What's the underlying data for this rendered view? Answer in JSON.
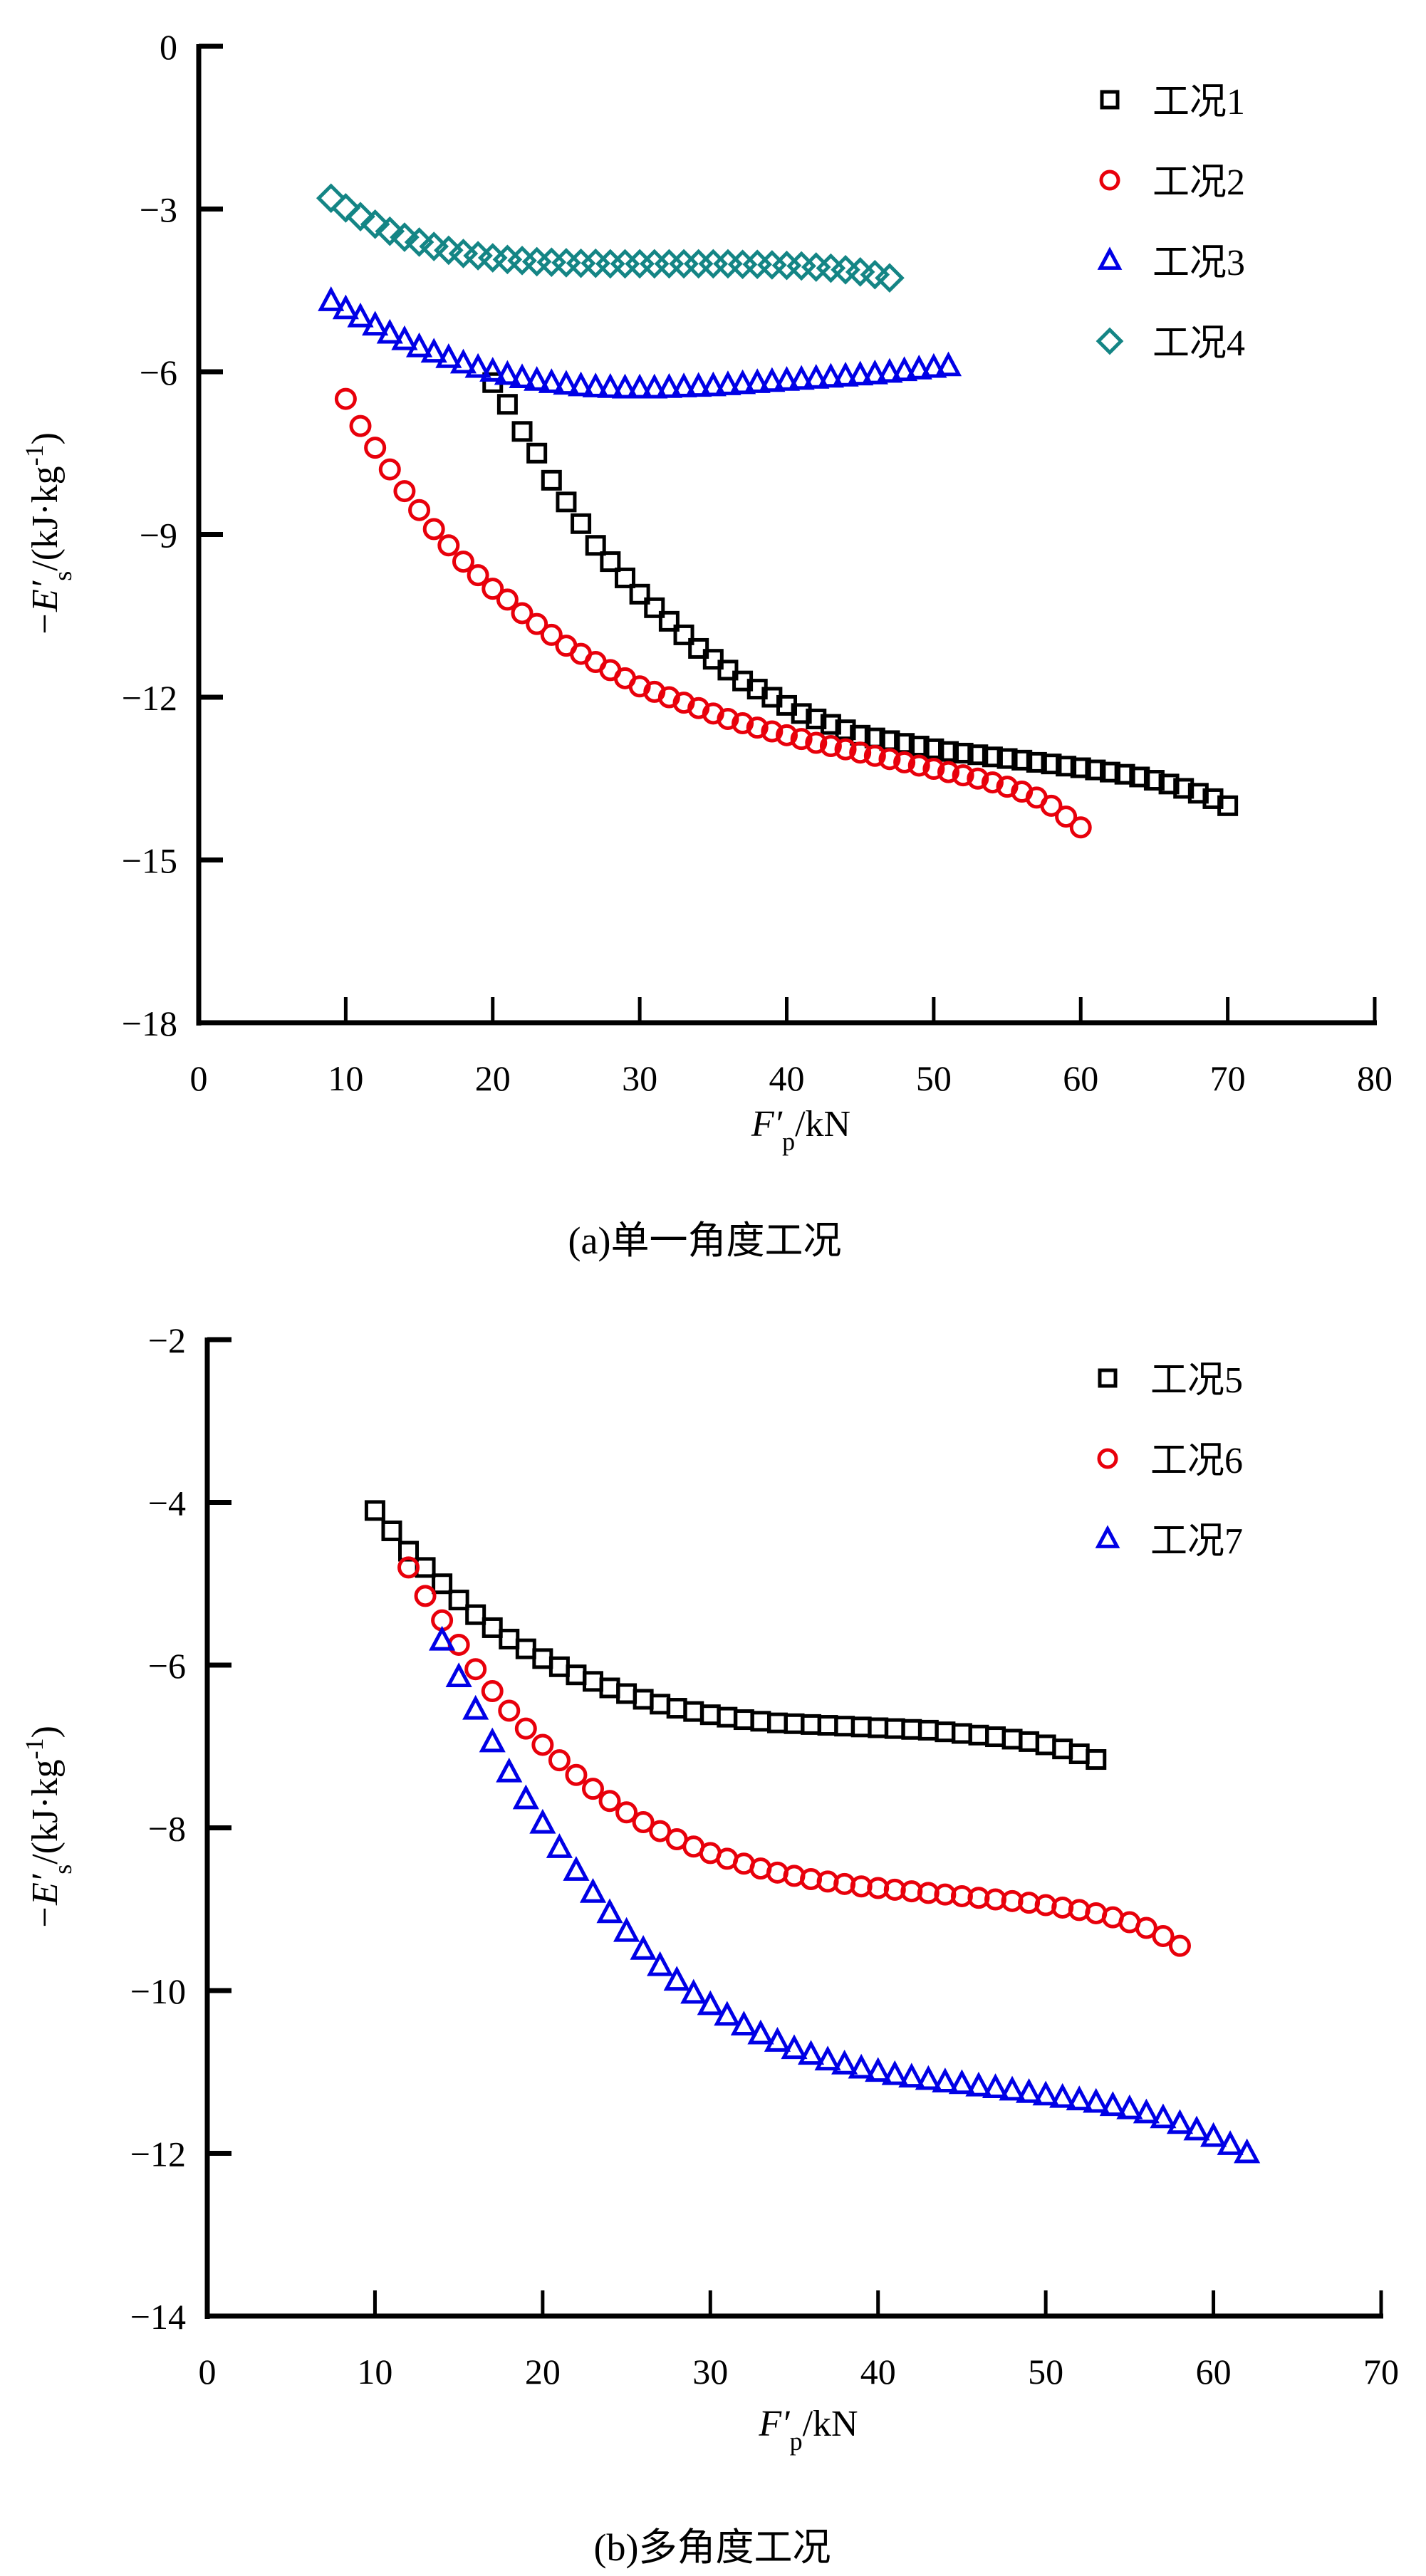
{
  "chart_data": [
    {
      "type": "scatter",
      "caption": "(a)单一角度工况",
      "xlabel_main": "F′",
      "xlabel_sub": "p",
      "xlabel_unit": "/kN",
      "ylabel_main": "−E′",
      "ylabel_sub": "s",
      "ylabel_unit": "/(kJ·kg",
      "ylabel_sup": "-1",
      "ylabel_close": ")",
      "xlim": [
        0,
        80
      ],
      "ylim": [
        -18,
        0
      ],
      "xticks": [
        0,
        10,
        20,
        30,
        40,
        50,
        60,
        70,
        80
      ],
      "yticks": [
        0,
        -3,
        -6,
        -9,
        -12,
        -15,
        -18
      ],
      "ytick_labels": [
        "0",
        "−3",
        "−6",
        "−9",
        "−12",
        "−15",
        "−18"
      ],
      "grid": false,
      "legend_position": "top-right",
      "series": [
        {
          "name": "工况1",
          "marker": "square",
          "color": "#000000",
          "x": [
            20,
            21,
            22,
            23,
            24,
            25,
            26,
            27,
            28,
            29,
            30,
            31,
            32,
            33,
            34,
            35,
            36,
            37,
            38,
            39,
            40,
            41,
            42,
            43,
            44,
            45,
            46,
            47,
            48,
            49,
            50,
            51,
            52,
            53,
            54,
            55,
            56,
            57,
            58,
            59,
            60,
            61,
            62,
            63,
            64,
            65,
            66,
            67,
            68,
            69,
            70
          ],
          "y": [
            -6.2,
            -6.6,
            -7.1,
            -7.5,
            -8.0,
            -8.4,
            -8.8,
            -9.2,
            -9.5,
            -9.8,
            -10.1,
            -10.35,
            -10.6,
            -10.85,
            -11.1,
            -11.3,
            -11.5,
            -11.7,
            -11.85,
            -12.0,
            -12.15,
            -12.3,
            -12.4,
            -12.5,
            -12.6,
            -12.7,
            -12.75,
            -12.8,
            -12.85,
            -12.9,
            -12.95,
            -13.0,
            -13.03,
            -13.06,
            -13.1,
            -13.13,
            -13.16,
            -13.2,
            -13.23,
            -13.27,
            -13.3,
            -13.34,
            -13.38,
            -13.42,
            -13.47,
            -13.53,
            -13.6,
            -13.68,
            -13.77,
            -13.87,
            -14.0
          ]
        },
        {
          "name": "工况2",
          "marker": "circle",
          "color": "#e8000b",
          "x": [
            10,
            11,
            12,
            13,
            14,
            15,
            16,
            17,
            18,
            19,
            20,
            21,
            22,
            23,
            24,
            25,
            26,
            27,
            28,
            29,
            30,
            31,
            32,
            33,
            34,
            35,
            36,
            37,
            38,
            39,
            40,
            41,
            42,
            43,
            44,
            45,
            46,
            47,
            48,
            49,
            50,
            51,
            52,
            53,
            54,
            55,
            56,
            57,
            58,
            59,
            60
          ],
          "y": [
            -6.5,
            -7.0,
            -7.4,
            -7.8,
            -8.2,
            -8.55,
            -8.9,
            -9.2,
            -9.5,
            -9.75,
            -10.0,
            -10.2,
            -10.45,
            -10.65,
            -10.85,
            -11.05,
            -11.2,
            -11.35,
            -11.5,
            -11.65,
            -11.8,
            -11.9,
            -12.0,
            -12.1,
            -12.2,
            -12.3,
            -12.4,
            -12.48,
            -12.56,
            -12.63,
            -12.7,
            -12.77,
            -12.84,
            -12.9,
            -12.96,
            -13.02,
            -13.08,
            -13.14,
            -13.2,
            -13.26,
            -13.32,
            -13.38,
            -13.44,
            -13.5,
            -13.57,
            -13.65,
            -13.74,
            -13.85,
            -14.0,
            -14.2,
            -14.4
          ]
        },
        {
          "name": "工况3",
          "marker": "triangle",
          "color": "#0000e6",
          "x": [
            9,
            10,
            11,
            12,
            13,
            14,
            15,
            16,
            17,
            18,
            19,
            20,
            21,
            22,
            23,
            24,
            25,
            26,
            27,
            28,
            29,
            30,
            31,
            32,
            33,
            34,
            35,
            36,
            37,
            38,
            39,
            40,
            41,
            42,
            43,
            44,
            45,
            46,
            47,
            48,
            49,
            50,
            51
          ],
          "y": [
            -4.7,
            -4.85,
            -5.0,
            -5.15,
            -5.3,
            -5.42,
            -5.55,
            -5.65,
            -5.75,
            -5.85,
            -5.93,
            -6.0,
            -6.06,
            -6.12,
            -6.17,
            -6.21,
            -6.24,
            -6.27,
            -6.29,
            -6.3,
            -6.31,
            -6.31,
            -6.31,
            -6.3,
            -6.29,
            -6.28,
            -6.27,
            -6.25,
            -6.23,
            -6.21,
            -6.19,
            -6.17,
            -6.15,
            -6.13,
            -6.11,
            -6.09,
            -6.07,
            -6.05,
            -6.02,
            -5.99,
            -5.96,
            -5.93,
            -5.9
          ]
        },
        {
          "name": "工况4",
          "marker": "diamond",
          "color": "#148585",
          "x": [
            9,
            10,
            11,
            12,
            13,
            14,
            15,
            16,
            17,
            18,
            19,
            20,
            21,
            22,
            23,
            24,
            25,
            26,
            27,
            28,
            29,
            30,
            31,
            32,
            33,
            34,
            35,
            36,
            37,
            38,
            39,
            40,
            41,
            42,
            43,
            44,
            45,
            46,
            47
          ],
          "y": [
            -2.8,
            -2.98,
            -3.14,
            -3.28,
            -3.41,
            -3.52,
            -3.61,
            -3.69,
            -3.76,
            -3.82,
            -3.86,
            -3.9,
            -3.93,
            -3.95,
            -3.97,
            -3.98,
            -3.99,
            -4.0,
            -4.0,
            -4.01,
            -4.01,
            -4.01,
            -4.01,
            -4.01,
            -4.01,
            -4.01,
            -4.01,
            -4.01,
            -4.02,
            -4.02,
            -4.03,
            -4.04,
            -4.05,
            -4.07,
            -4.09,
            -4.12,
            -4.16,
            -4.21,
            -4.27
          ]
        }
      ]
    },
    {
      "type": "scatter",
      "caption": "(b)多角度工况",
      "xlabel_main": "F′",
      "xlabel_sub": "p",
      "xlabel_unit": "/kN",
      "ylabel_main": "−E′",
      "ylabel_sub": "s",
      "ylabel_unit": "/(kJ·kg",
      "ylabel_sup": "-1",
      "ylabel_close": ")",
      "xlim": [
        0,
        70
      ],
      "ylim": [
        -14,
        -2
      ],
      "xticks": [
        0,
        10,
        20,
        30,
        40,
        50,
        60,
        70
      ],
      "yticks": [
        -2,
        -4,
        -6,
        -8,
        -10,
        -12,
        -14
      ],
      "ytick_labels": [
        "−2",
        "−4",
        "−6",
        "−8",
        "−10",
        "−12",
        "−14"
      ],
      "grid": false,
      "legend_position": "top-right",
      "series": [
        {
          "name": "工况5",
          "marker": "square",
          "color": "#000000",
          "x": [
            10,
            11,
            12,
            13,
            14,
            15,
            16,
            17,
            18,
            19,
            20,
            21,
            22,
            23,
            24,
            25,
            26,
            27,
            28,
            29,
            30,
            31,
            32,
            33,
            34,
            35,
            36,
            37,
            38,
            39,
            40,
            41,
            42,
            43,
            44,
            45,
            46,
            47,
            48,
            49,
            50,
            51,
            52,
            53
          ],
          "y": [
            -4.1,
            -4.35,
            -4.6,
            -4.8,
            -5.0,
            -5.2,
            -5.38,
            -5.54,
            -5.68,
            -5.8,
            -5.92,
            -6.02,
            -6.12,
            -6.2,
            -6.28,
            -6.35,
            -6.42,
            -6.48,
            -6.53,
            -6.57,
            -6.61,
            -6.64,
            -6.67,
            -6.69,
            -6.71,
            -6.72,
            -6.73,
            -6.74,
            -6.75,
            -6.76,
            -6.77,
            -6.78,
            -6.79,
            -6.8,
            -6.82,
            -6.84,
            -6.86,
            -6.88,
            -6.91,
            -6.94,
            -6.98,
            -7.03,
            -7.09,
            -7.16
          ]
        },
        {
          "name": "工况6",
          "marker": "circle",
          "color": "#e8000b",
          "x": [
            12,
            13,
            14,
            15,
            16,
            17,
            18,
            19,
            20,
            21,
            22,
            23,
            24,
            25,
            26,
            27,
            28,
            29,
            30,
            31,
            32,
            33,
            34,
            35,
            36,
            37,
            38,
            39,
            40,
            41,
            42,
            43,
            44,
            45,
            46,
            47,
            48,
            49,
            50,
            51,
            52,
            53,
            54,
            55,
            56,
            57,
            58
          ],
          "y": [
            -4.8,
            -5.15,
            -5.45,
            -5.75,
            -6.05,
            -6.32,
            -6.56,
            -6.78,
            -6.98,
            -7.17,
            -7.35,
            -7.52,
            -7.67,
            -7.81,
            -7.93,
            -8.04,
            -8.14,
            -8.23,
            -8.31,
            -8.38,
            -8.44,
            -8.5,
            -8.55,
            -8.59,
            -8.63,
            -8.66,
            -8.69,
            -8.72,
            -8.74,
            -8.76,
            -8.78,
            -8.8,
            -8.82,
            -8.84,
            -8.86,
            -8.88,
            -8.9,
            -8.92,
            -8.95,
            -8.98,
            -9.01,
            -9.05,
            -9.1,
            -9.16,
            -9.23,
            -9.33,
            -9.45
          ]
        },
        {
          "name": "工况7",
          "marker": "triangle",
          "color": "#0000e6",
          "x": [
            14,
            15,
            16,
            17,
            18,
            19,
            20,
            21,
            22,
            23,
            24,
            25,
            26,
            27,
            28,
            29,
            30,
            31,
            32,
            33,
            34,
            35,
            36,
            37,
            38,
            39,
            40,
            41,
            42,
            43,
            44,
            45,
            46,
            47,
            48,
            49,
            50,
            51,
            52,
            53,
            54,
            55,
            56,
            57,
            58,
            59,
            60,
            61,
            62
          ],
          "y": [
            -5.7,
            -6.15,
            -6.55,
            -6.95,
            -7.32,
            -7.65,
            -7.95,
            -8.25,
            -8.53,
            -8.8,
            -9.05,
            -9.28,
            -9.5,
            -9.7,
            -9.88,
            -10.04,
            -10.18,
            -10.31,
            -10.43,
            -10.54,
            -10.63,
            -10.72,
            -10.79,
            -10.86,
            -10.91,
            -10.96,
            -11.0,
            -11.04,
            -11.07,
            -11.1,
            -11.13,
            -11.15,
            -11.18,
            -11.2,
            -11.23,
            -11.26,
            -11.29,
            -11.32,
            -11.35,
            -11.38,
            -11.42,
            -11.46,
            -11.51,
            -11.57,
            -11.64,
            -11.72,
            -11.8,
            -11.9,
            -12.0
          ]
        }
      ]
    }
  ]
}
